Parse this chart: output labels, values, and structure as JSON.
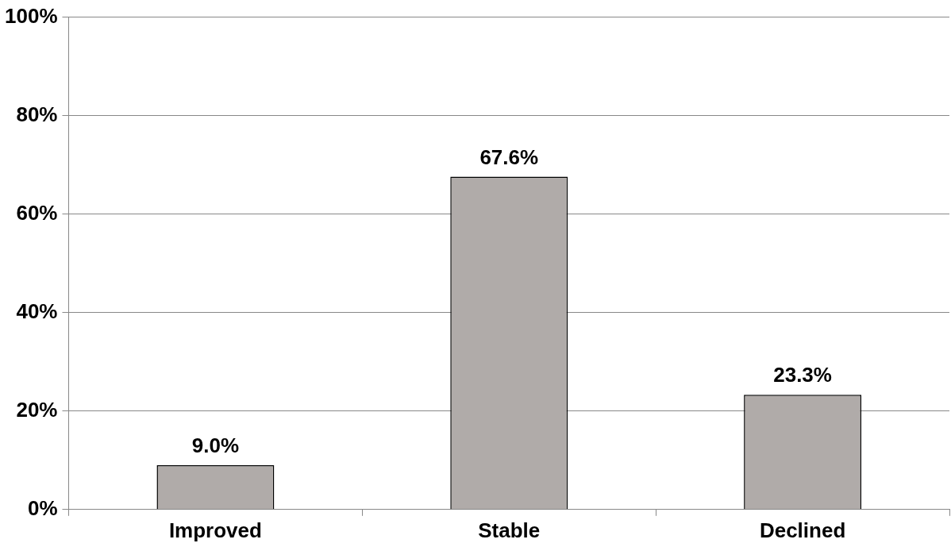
{
  "chart_data": {
    "type": "bar",
    "categories": [
      "Improved",
      "Stable",
      "Declined"
    ],
    "values": [
      9.0,
      67.6,
      23.3
    ],
    "value_labels": [
      "9.0%",
      "67.6%",
      "23.3%"
    ],
    "color": "#b0aba9",
    "ylim": [
      0,
      100
    ],
    "yticks": [
      {
        "value": 0,
        "label": "0%"
      },
      {
        "value": 20,
        "label": "20%"
      },
      {
        "value": 40,
        "label": "40%"
      },
      {
        "value": 60,
        "label": "60%"
      },
      {
        "value": 80,
        "label": "80%"
      },
      {
        "value": 100,
        "label": "100%"
      }
    ],
    "grid": "y",
    "legend": false
  }
}
